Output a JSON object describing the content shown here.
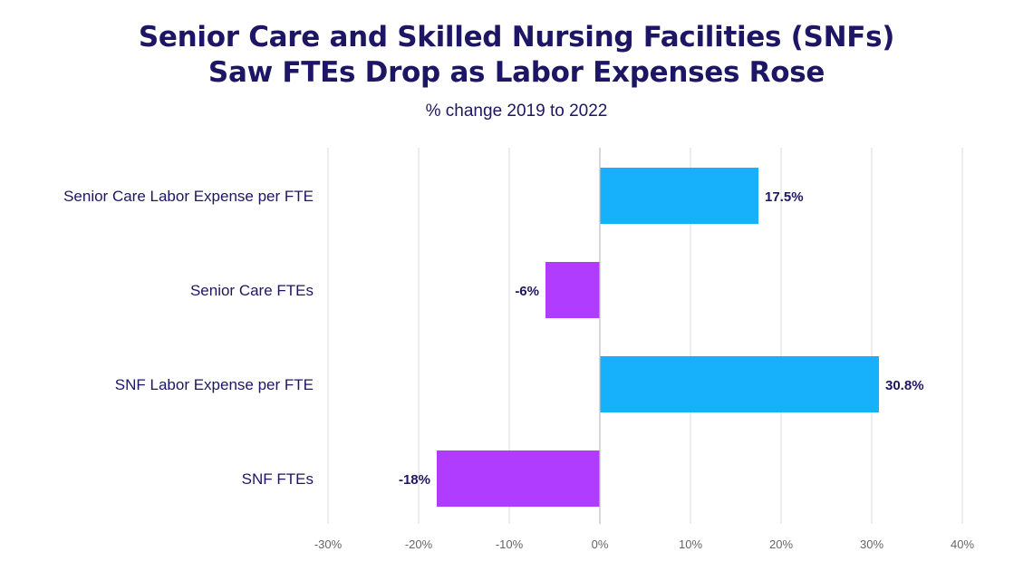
{
  "chart_data": {
    "type": "bar",
    "orientation": "horizontal",
    "title_lines": [
      "Senior Care and Skilled Nursing Facilities (SNFs)",
      "Saw FTEs Drop as Labor Expenses Rose"
    ],
    "subtitle": "% change 2019 to 2022",
    "categories": [
      "Senior Care Labor Expense per FTE",
      "Senior Care FTEs",
      "SNF Labor Expense per FTE",
      "SNF FTEs"
    ],
    "values": [
      17.5,
      -6,
      30.8,
      -18
    ],
    "data_labels": [
      "17.5%",
      "-6%",
      "30.8%",
      "-18%"
    ],
    "positive_color": "#17b0fb",
    "negative_color": "#b03cff",
    "xlim": [
      -30,
      40
    ],
    "xticks": [
      -30,
      -20,
      -10,
      0,
      10,
      20,
      30,
      40
    ],
    "xtick_labels": [
      "-30%",
      "-20%",
      "-10%",
      "0%",
      "10%",
      "20%",
      "30%",
      "40%"
    ],
    "grid": true,
    "xlabel": "",
    "ylabel": ""
  }
}
